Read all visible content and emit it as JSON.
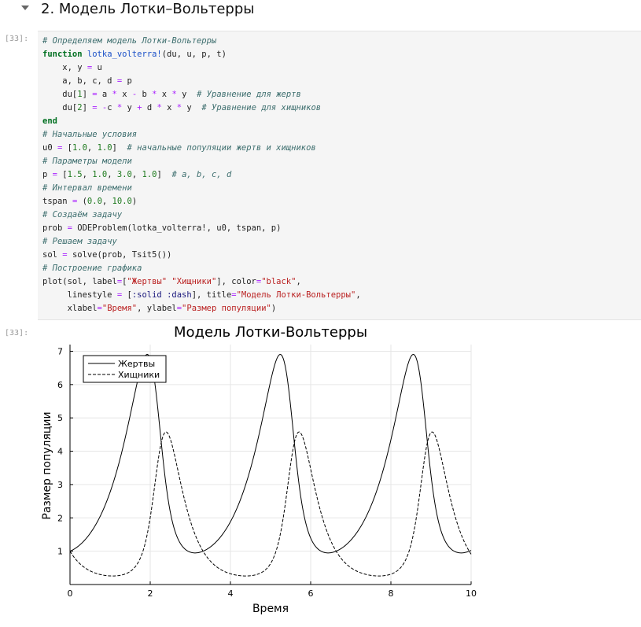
{
  "section": {
    "title": "2. Модель Лотки–Вольтерры"
  },
  "cell": {
    "input_prompt": "[33]:",
    "output_prompt": "[33]:",
    "code_lines": [
      [
        {
          "t": "# Определяем модель Лотки-Вольтерры",
          "c": "cm"
        }
      ],
      [
        {
          "t": "function",
          "c": "kw"
        },
        {
          "t": " "
        },
        {
          "t": "lotka_volterra!",
          "c": "fn"
        },
        {
          "t": "(du, u, p, t)"
        }
      ],
      [
        {
          "t": "    x, y "
        },
        {
          "t": "=",
          "c": "op"
        },
        {
          "t": " u"
        }
      ],
      [
        {
          "t": "    a, b, c, d "
        },
        {
          "t": "=",
          "c": "op"
        },
        {
          "t": " p"
        }
      ],
      [
        {
          "t": "    du["
        },
        {
          "t": "1",
          "c": "nu"
        },
        {
          "t": "] "
        },
        {
          "t": "=",
          "c": "op"
        },
        {
          "t": " a "
        },
        {
          "t": "*",
          "c": "op"
        },
        {
          "t": " x "
        },
        {
          "t": "-",
          "c": "op"
        },
        {
          "t": " b "
        },
        {
          "t": "*",
          "c": "op"
        },
        {
          "t": " x "
        },
        {
          "t": "*",
          "c": "op"
        },
        {
          "t": " y  "
        },
        {
          "t": "# Уравнение для жертв",
          "c": "cm"
        }
      ],
      [
        {
          "t": "    du["
        },
        {
          "t": "2",
          "c": "nu"
        },
        {
          "t": "] "
        },
        {
          "t": "=",
          "c": "op"
        },
        {
          "t": " "
        },
        {
          "t": "-",
          "c": "op"
        },
        {
          "t": "c "
        },
        {
          "t": "*",
          "c": "op"
        },
        {
          "t": " y "
        },
        {
          "t": "+",
          "c": "op"
        },
        {
          "t": " d "
        },
        {
          "t": "*",
          "c": "op"
        },
        {
          "t": " x "
        },
        {
          "t": "*",
          "c": "op"
        },
        {
          "t": " y  "
        },
        {
          "t": "# Уравнение для хищников",
          "c": "cm"
        }
      ],
      [
        {
          "t": "end",
          "c": "kw"
        }
      ],
      [
        {
          "t": "# Начальные условия",
          "c": "cm"
        }
      ],
      [
        {
          "t": "u0 "
        },
        {
          "t": "=",
          "c": "op"
        },
        {
          "t": " ["
        },
        {
          "t": "1.0",
          "c": "nu"
        },
        {
          "t": ", "
        },
        {
          "t": "1.0",
          "c": "nu"
        },
        {
          "t": "]  "
        },
        {
          "t": "# начальные популяции жертв и хищников",
          "c": "cm"
        }
      ],
      [
        {
          "t": "# Параметры модели",
          "c": "cm"
        }
      ],
      [
        {
          "t": "p "
        },
        {
          "t": "=",
          "c": "op"
        },
        {
          "t": " ["
        },
        {
          "t": "1.5",
          "c": "nu"
        },
        {
          "t": ", "
        },
        {
          "t": "1.0",
          "c": "nu"
        },
        {
          "t": ", "
        },
        {
          "t": "3.0",
          "c": "nu"
        },
        {
          "t": ", "
        },
        {
          "t": "1.0",
          "c": "nu"
        },
        {
          "t": "]  "
        },
        {
          "t": "# a, b, c, d",
          "c": "cm"
        }
      ],
      [
        {
          "t": "# Интервал времени",
          "c": "cm"
        }
      ],
      [
        {
          "t": "tspan "
        },
        {
          "t": "=",
          "c": "op"
        },
        {
          "t": " ("
        },
        {
          "t": "0.0",
          "c": "nu"
        },
        {
          "t": ", "
        },
        {
          "t": "10.0",
          "c": "nu"
        },
        {
          "t": ")"
        }
      ],
      [
        {
          "t": "# Создаём задачу",
          "c": "cm"
        }
      ],
      [
        {
          "t": "prob "
        },
        {
          "t": "=",
          "c": "op"
        },
        {
          "t": " ODEProblem(lotka_volterra!, u0, tspan, p)"
        }
      ],
      [
        {
          "t": "# Решаем задачу",
          "c": "cm"
        }
      ],
      [
        {
          "t": "sol "
        },
        {
          "t": "=",
          "c": "op"
        },
        {
          "t": " solve(prob, Tsit5())"
        }
      ],
      [
        {
          "t": "# Построение графика",
          "c": "cm"
        }
      ],
      [
        {
          "t": "plot(sol, label"
        },
        {
          "t": "=",
          "c": "op"
        },
        {
          "t": "["
        },
        {
          "t": "\"Жертвы\"",
          "c": "st"
        },
        {
          "t": " "
        },
        {
          "t": "\"Хищники\"",
          "c": "st"
        },
        {
          "t": "], color"
        },
        {
          "t": "=",
          "c": "op"
        },
        {
          "t": "\"black\"",
          "c": "st"
        },
        {
          "t": ","
        }
      ],
      [
        {
          "t": "     linestyle "
        },
        {
          "t": "=",
          "c": "op"
        },
        {
          "t": " ["
        },
        {
          "t": ":solid",
          "c": "sy"
        },
        {
          "t": " "
        },
        {
          "t": ":dash",
          "c": "sy"
        },
        {
          "t": "], title"
        },
        {
          "t": "=",
          "c": "op"
        },
        {
          "t": "\"Модель Лотки-Вольтерры\"",
          "c": "st"
        },
        {
          "t": ","
        }
      ],
      [
        {
          "t": "     xlabel"
        },
        {
          "t": "=",
          "c": "op"
        },
        {
          "t": "\"Время\"",
          "c": "st"
        },
        {
          "t": ", ylabel"
        },
        {
          "t": "=",
          "c": "op"
        },
        {
          "t": "\"Размер популяции\"",
          "c": "st"
        },
        {
          "t": ")"
        }
      ]
    ]
  },
  "chart_data": {
    "type": "line",
    "title": "Модель Лотки-Вольтерры",
    "xlabel": "Время",
    "ylabel": "Размер популяции",
    "xlim": [
      0,
      10
    ],
    "ylim": [
      0,
      7.2
    ],
    "xticks": [
      0,
      2,
      4,
      6,
      8,
      10
    ],
    "yticks": [
      1,
      2,
      3,
      4,
      5,
      6,
      7
    ],
    "grid": true,
    "legend_position": "top-left",
    "color": "#000000",
    "model": {
      "a": 1.5,
      "b": 1.0,
      "c": 3.0,
      "d": 1.0,
      "u0": [
        1.0,
        1.0
      ],
      "tspan": [
        0.0,
        10.0
      ]
    },
    "series": [
      {
        "name": "Жертвы",
        "linestyle": "solid"
      },
      {
        "name": "Хищники",
        "linestyle": "dash"
      }
    ]
  }
}
